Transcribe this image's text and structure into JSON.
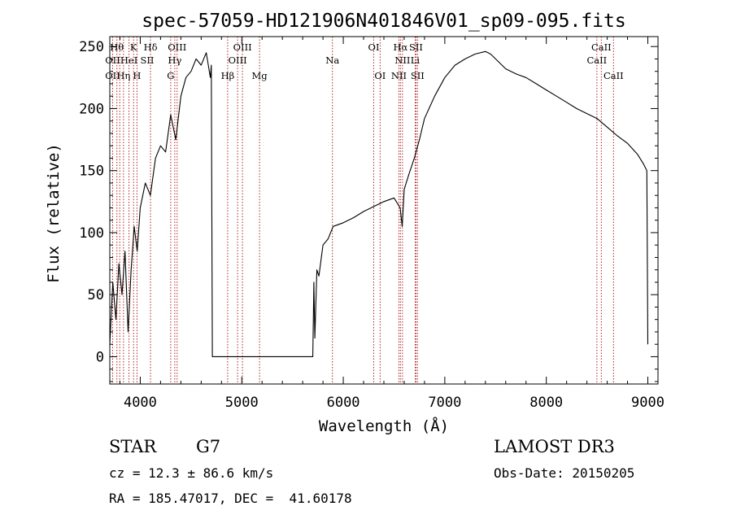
{
  "chart_data": {
    "type": "line",
    "title": "spec-57059-HD121906N401846V01_sp09-095.fits",
    "xlabel": "Wavelength (Å)",
    "ylabel": "Flux (relative)",
    "xlim": [
      3700,
      9100
    ],
    "ylim": [
      -22,
      258
    ],
    "xticks": [
      4000,
      5000,
      6000,
      7000,
      8000,
      9000
    ],
    "yticks": [
      0,
      50,
      100,
      150,
      200,
      250
    ],
    "grid": false,
    "series": [
      {
        "color": "#000000",
        "x": [
          3700,
          3730,
          3760,
          3790,
          3820,
          3850,
          3880,
          3910,
          3940,
          3970,
          4000,
          4050,
          4100,
          4150,
          4200,
          4250,
          4300,
          4350,
          4400,
          4450,
          4500,
          4550,
          4600,
          4650,
          4690,
          4700,
          4710,
          5700,
          5710,
          5720,
          5740,
          5760,
          5800,
          5850,
          5900,
          6000,
          6100,
          6200,
          6300,
          6400,
          6500,
          6560,
          6580,
          6600,
          6650,
          6700,
          6750,
          6800,
          6900,
          7000,
          7100,
          7200,
          7300,
          7400,
          7450,
          7500,
          7600,
          7700,
          7800,
          7900,
          8000,
          8100,
          8200,
          8300,
          8400,
          8500,
          8600,
          8700,
          8800,
          8900,
          8960,
          8990,
          9000
        ],
        "y": [
          10,
          60,
          30,
          75,
          50,
          85,
          20,
          70,
          105,
          85,
          120,
          140,
          130,
          160,
          170,
          165,
          195,
          175,
          210,
          225,
          230,
          240,
          235,
          245,
          225,
          235,
          0,
          0,
          60,
          15,
          70,
          65,
          90,
          95,
          105,
          108,
          112,
          117,
          121,
          125,
          128,
          120,
          105,
          135,
          148,
          160,
          175,
          192,
          210,
          225,
          235,
          240,
          244,
          246,
          244,
          240,
          232,
          228,
          225,
          220,
          215,
          210,
          205,
          200,
          196,
          192,
          185,
          178,
          172,
          163,
          155,
          150,
          10
        ]
      }
    ],
    "line_ids": {
      "x": [
        3728,
        3770,
        3798,
        3835,
        3889,
        3934,
        3968,
        4101,
        4300,
        4340,
        4363,
        4861,
        4959,
        5007,
        5175,
        5893,
        6300,
        6363,
        6548,
        6563,
        6583,
        6708,
        6716,
        6731,
        8498,
        8542,
        8662
      ],
      "labels": [
        {
          "text": "Hθ",
          "x": 3770,
          "row": 1
        },
        {
          "text": "K",
          "x": 3934,
          "row": 1
        },
        {
          "text": "Hδ",
          "x": 4101,
          "row": 1
        },
        {
          "text": "OII",
          "x": 3728,
          "row": 2
        },
        {
          "text": "HeI",
          "x": 3889,
          "row": 2
        },
        {
          "text": "SII",
          "x": 4068,
          "row": 2
        },
        {
          "text": "OII",
          "x": 3728,
          "row": 3
        },
        {
          "text": "Hη",
          "x": 3835,
          "row": 3
        },
        {
          "text": "H",
          "x": 3968,
          "row": 3
        },
        {
          "text": "OIII",
          "x": 4363,
          "row": 1
        },
        {
          "text": "Hγ",
          "x": 4340,
          "row": 2
        },
        {
          "text": "G",
          "x": 4300,
          "row": 3
        },
        {
          "text": "OIII",
          "x": 5007,
          "row": 1
        },
        {
          "text": "OIII",
          "x": 4959,
          "row": 2
        },
        {
          "text": "Hβ",
          "x": 4861,
          "row": 3
        },
        {
          "text": "Mg",
          "x": 5175,
          "row": 3
        },
        {
          "text": "Na",
          "x": 5893,
          "row": 2
        },
        {
          "text": "OI",
          "x": 6300,
          "row": 1
        },
        {
          "text": "OI",
          "x": 6363,
          "row": 3
        },
        {
          "text": "Hα",
          "x": 6563,
          "row": 1
        },
        {
          "text": "SII",
          "x": 6716,
          "row": 1
        },
        {
          "text": "NII",
          "x": 6583,
          "row": 2
        },
        {
          "text": "Li",
          "x": 6708,
          "row": 2
        },
        {
          "text": "NII",
          "x": 6548,
          "row": 3
        },
        {
          "text": "SII",
          "x": 6731,
          "row": 3
        },
        {
          "text": "CaII",
          "x": 8542,
          "row": 1
        },
        {
          "text": "CaII",
          "x": 8498,
          "row": 2
        },
        {
          "text": "CaII",
          "x": 8662,
          "row": 3
        }
      ]
    }
  },
  "info": {
    "object_class": "STAR",
    "subclass": "G7",
    "survey": "LAMOST DR3",
    "redshift": "cz = 12.3 ± 86.6 km/s",
    "obs_date": "Obs-Date: 20150205",
    "coords": "RA = 185.47017, DEC =  41.60178"
  }
}
